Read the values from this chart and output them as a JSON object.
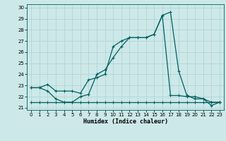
{
  "xlabel": "Humidex (Indice chaleur)",
  "ylabel": "",
  "background_color": "#cce8e8",
  "grid_color": "#b0d0d0",
  "line_color": "#006060",
  "xlim": [
    -0.5,
    23.5
  ],
  "ylim": [
    20.8,
    30.3
  ],
  "yticks": [
    21,
    22,
    23,
    24,
    25,
    26,
    27,
    28,
    29,
    30
  ],
  "xticks": [
    0,
    1,
    2,
    3,
    4,
    5,
    6,
    7,
    8,
    9,
    10,
    11,
    12,
    13,
    14,
    15,
    16,
    17,
    18,
    19,
    20,
    21,
    22,
    23
  ],
  "line1_x": [
    0,
    1,
    2,
    3,
    4,
    5,
    6,
    7,
    8,
    9,
    10,
    11,
    12,
    13,
    14,
    15,
    16,
    17,
    18,
    19,
    20,
    21,
    22,
    23
  ],
  "line1_y": [
    22.8,
    22.8,
    23.1,
    22.5,
    22.5,
    22.5,
    22.3,
    23.5,
    23.7,
    24.0,
    26.5,
    27.0,
    27.3,
    27.3,
    27.3,
    27.6,
    29.3,
    29.6,
    24.3,
    22.1,
    21.8,
    21.8,
    21.2,
    21.5
  ],
  "line2_x": [
    0,
    1,
    2,
    3,
    4,
    5,
    6,
    7,
    8,
    9,
    10,
    11,
    12,
    13,
    14,
    15,
    16,
    17,
    18,
    19,
    20,
    21,
    22,
    23
  ],
  "line2_y": [
    22.8,
    22.8,
    22.5,
    21.8,
    21.5,
    21.5,
    22.0,
    22.2,
    24.0,
    24.4,
    25.5,
    26.5,
    27.3,
    27.3,
    27.3,
    27.6,
    29.3,
    22.1,
    22.1,
    22.0,
    22.0,
    21.8,
    21.5,
    21.5
  ],
  "line3_x": [
    0,
    1,
    2,
    3,
    4,
    5,
    6,
    7,
    8,
    9,
    10,
    11,
    12,
    13,
    14,
    15,
    16,
    17,
    18,
    19,
    20,
    21,
    22,
    23
  ],
  "line3_y": [
    21.5,
    21.5,
    21.5,
    21.5,
    21.5,
    21.5,
    21.5,
    21.5,
    21.5,
    21.5,
    21.5,
    21.5,
    21.5,
    21.5,
    21.5,
    21.5,
    21.5,
    21.5,
    21.5,
    21.5,
    21.5,
    21.5,
    21.5,
    21.5
  ]
}
